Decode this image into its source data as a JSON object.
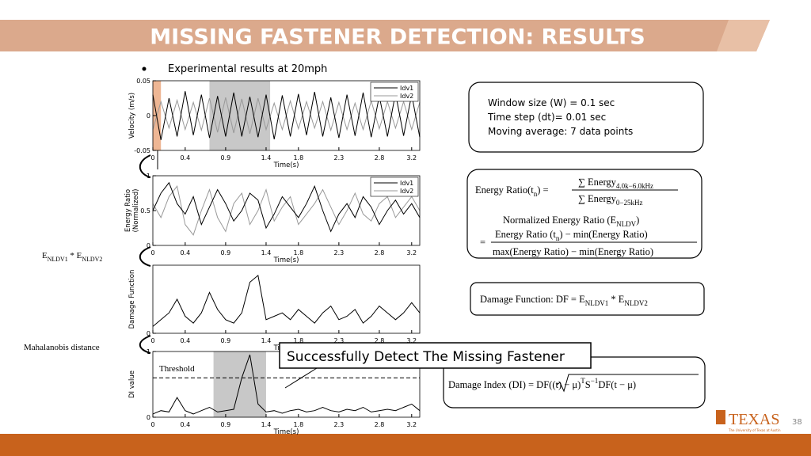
{
  "title": "MISSING FASTENER DETECTION: RESULTS",
  "bullet": "Experimental results at 20mph",
  "info_box": {
    "lines": [
      "Window size (W) = 0.1 sec",
      "Time step (dt)= 0.01 sec",
      "Moving average: 7 data points"
    ]
  },
  "energy_ratio": {
    "lines": [
      {
        "parts": [
          {
            "text": "Energy Ratio(t"
          },
          {
            "text": "n",
            "sub": true
          },
          {
            "text": ") ="
          }
        ]
      },
      {
        "parts": [
          {
            "text": "∑ Energy"
          },
          {
            "text": "4.0k−6.0kHz",
            "sub": true
          }
        ]
      },
      {
        "parts": [
          {
            "text": "∑ Energy"
          },
          {
            "text": "0−25kHz",
            "sub": true
          }
        ]
      },
      {
        "parts": [
          {
            "text": "Normalized Energy Ratio (E"
          },
          {
            "text": "NLDV",
            "sub": true
          },
          {
            "text": ")"
          }
        ]
      },
      {
        "parts": [
          {
            "text": "="
          }
        ]
      },
      {
        "parts": [
          {
            "text": "Energy Ratio (t"
          },
          {
            "text": "n",
            "sub": true
          },
          {
            "text": ") − min(Energy Ratio)"
          }
        ]
      },
      {
        "parts": [
          {
            "text": "max(Energy Ratio) − min(Energy Ratio)"
          }
        ]
      }
    ]
  },
  "damage_function": {
    "parts": [
      {
        "text": "Damage Function: DF = E"
      },
      {
        "text": "NLDV1",
        "sub": true
      },
      {
        "text": " * E"
      },
      {
        "text": "NLDV2",
        "sub": true
      }
    ]
  },
  "damage_index": {
    "parts": [
      {
        "text": "Damage Index (DI) = "
      },
      {
        "text": "DF((t) − μ)"
      },
      {
        "text": "T",
        "sup": true
      },
      {
        "text": "S"
      },
      {
        "text": "−1",
        "sup": true
      },
      {
        "text": "DF(t − μ)"
      }
    ]
  },
  "left_labels": [
    {
      "parts": [
        {
          "text": "E"
        },
        {
          "text": "NLDV1",
          "sub": true
        },
        {
          "text": " * E"
        },
        {
          "text": "NLDV2",
          "sub": true
        }
      ]
    },
    {
      "parts": [
        {
          "text": "Mahalanobis distance"
        }
      ]
    }
  ],
  "callout": "Successfully Detect The Missing Fastener",
  "logo": "TEXAS",
  "logo_sub": "The University of Texas at Austin",
  "page_number": "38",
  "chart_data": [
    {
      "type": "line",
      "ylabel": [
        "Velocity (m/s)"
      ],
      "xlabel": "Time(s)",
      "xlim": [
        0,
        3.3
      ],
      "xticks": [
        0,
        0.4,
        0.9,
        1.4,
        1.8,
        2.3,
        2.8,
        3.2
      ],
      "ylim": [
        -0.05,
        0.05
      ],
      "yticks": [
        -0.05,
        0,
        0.05
      ],
      "shades": [
        {
          "range": [
            0,
            0.1
          ],
          "color": "#e07a3c"
        },
        {
          "range": [
            0.7,
            1.45
          ],
          "color": "#9a9a9a"
        }
      ],
      "x": [
        0,
        0.1,
        0.2,
        0.3,
        0.4,
        0.5,
        0.6,
        0.7,
        0.8,
        0.9,
        1,
        1.1,
        1.2,
        1.3,
        1.4,
        1.5,
        1.6,
        1.7,
        1.8,
        1.9,
        2,
        2.1,
        2.2,
        2.3,
        2.4,
        2.5,
        2.6,
        2.7,
        2.8,
        2.9,
        3,
        3.1,
        3.2,
        3.3
      ],
      "series": [
        {
          "name": "Idv1",
          "color": "#000000",
          "values": [
            0.03,
            -0.035,
            0.025,
            -0.03,
            0.035,
            -0.028,
            0.03,
            -0.032,
            0.028,
            -0.03,
            0.033,
            -0.03,
            0.027,
            -0.031,
            0.03,
            -0.034,
            0.029,
            -0.03,
            0.031,
            -0.028,
            0.034,
            -0.03,
            0.026,
            -0.032,
            0.03,
            -0.029,
            0.033,
            -0.031,
            0.028,
            -0.03,
            0.032,
            -0.029,
            0.03,
            -0.031
          ]
        },
        {
          "name": "Idv2",
          "color": "#999999",
          "values": [
            -0.02,
            0.02,
            -0.018,
            0.022,
            -0.02,
            0.019,
            -0.021,
            0.025,
            -0.024,
            0.026,
            -0.025,
            0.024,
            -0.026,
            0.025,
            -0.02,
            0.018,
            -0.02,
            0.021,
            -0.019,
            0.02,
            -0.018,
            0.02,
            -0.021,
            0.019,
            -0.02,
            0.018,
            -0.02,
            0.021,
            -0.019,
            0.02,
            -0.018,
            0.02,
            -0.02,
            0.019
          ]
        }
      ]
    },
    {
      "type": "line",
      "ylabel": [
        "Energy Ratio",
        "(Normalized)"
      ],
      "xlabel": "Time(s)",
      "xlim": [
        0,
        3.3
      ],
      "xticks": [
        0,
        0.4,
        0.9,
        1.4,
        1.8,
        2.3,
        2.8,
        3.2
      ],
      "ylim": [
        0,
        1
      ],
      "yticks": [
        0,
        0.5,
        1
      ],
      "x": [
        0,
        0.1,
        0.2,
        0.3,
        0.4,
        0.5,
        0.6,
        0.7,
        0.8,
        0.9,
        1,
        1.1,
        1.2,
        1.3,
        1.4,
        1.5,
        1.6,
        1.7,
        1.8,
        1.9,
        2,
        2.1,
        2.2,
        2.3,
        2.4,
        2.5,
        2.6,
        2.7,
        2.8,
        2.9,
        3,
        3.1,
        3.2,
        3.3
      ],
      "series": [
        {
          "name": "Idv1",
          "color": "#000000",
          "values": [
            0.5,
            0.75,
            0.9,
            0.6,
            0.45,
            0.7,
            0.3,
            0.55,
            0.8,
            0.6,
            0.35,
            0.5,
            0.75,
            0.65,
            0.25,
            0.45,
            0.7,
            0.55,
            0.4,
            0.6,
            0.85,
            0.5,
            0.2,
            0.45,
            0.6,
            0.4,
            0.7,
            0.55,
            0.3,
            0.5,
            0.65,
            0.45,
            0.6,
            0.4
          ]
        },
        {
          "name": "Idv2",
          "color": "#999999",
          "values": [
            0.6,
            0.4,
            0.7,
            0.85,
            0.3,
            0.15,
            0.5,
            0.8,
            0.4,
            0.2,
            0.6,
            0.75,
            0.3,
            0.5,
            0.8,
            0.35,
            0.55,
            0.7,
            0.3,
            0.45,
            0.6,
            0.8,
            0.55,
            0.3,
            0.5,
            0.75,
            0.45,
            0.35,
            0.6,
            0.7,
            0.4,
            0.55,
            0.7,
            0.5
          ]
        }
      ]
    },
    {
      "type": "line",
      "ylabel": [
        "Damage Function"
      ],
      "xlabel": "Time(s)",
      "xlim": [
        0,
        3.3
      ],
      "xticks": [
        0,
        0.4,
        0.9,
        1.4,
        1.8,
        2.3,
        2.8,
        3.2
      ],
      "ylim": [
        0,
        1
      ],
      "yticks": [
        0
      ],
      "x": [
        0,
        0.1,
        0.2,
        0.3,
        0.4,
        0.5,
        0.6,
        0.7,
        0.8,
        0.9,
        1,
        1.1,
        1.2,
        1.3,
        1.4,
        1.5,
        1.6,
        1.7,
        1.8,
        1.9,
        2,
        2.1,
        2.2,
        2.3,
        2.4,
        2.5,
        2.6,
        2.7,
        2.8,
        2.9,
        3,
        3.1,
        3.2,
        3.3
      ],
      "series": [
        {
          "color": "#000000",
          "values": [
            0.1,
            0.2,
            0.3,
            0.5,
            0.25,
            0.15,
            0.3,
            0.6,
            0.35,
            0.2,
            0.15,
            0.3,
            0.75,
            0.85,
            0.2,
            0.25,
            0.3,
            0.2,
            0.35,
            0.25,
            0.15,
            0.3,
            0.4,
            0.2,
            0.25,
            0.35,
            0.15,
            0.25,
            0.4,
            0.3,
            0.2,
            0.3,
            0.45,
            0.3
          ]
        }
      ]
    },
    {
      "type": "line",
      "ylabel": [
        "DI value"
      ],
      "xlabel": "Time(s)",
      "xlim": [
        0,
        3.3
      ],
      "xticks": [
        0,
        0.4,
        0.9,
        1.4,
        1.8,
        2.3,
        2.8,
        3.2
      ],
      "ylim": [
        0,
        1
      ],
      "yticks": [
        0,
        1
      ],
      "shades": [
        {
          "range": [
            0.75,
            1.4
          ],
          "color": "#9a9a9a"
        }
      ],
      "threshold": {
        "value": 0.6,
        "label": "Threshold"
      },
      "x": [
        0,
        0.1,
        0.2,
        0.3,
        0.4,
        0.5,
        0.6,
        0.7,
        0.8,
        0.9,
        1,
        1.1,
        1.2,
        1.3,
        1.4,
        1.5,
        1.6,
        1.7,
        1.8,
        1.9,
        2,
        2.1,
        2.2,
        2.3,
        2.4,
        2.5,
        2.6,
        2.7,
        2.8,
        2.9,
        3,
        3.1,
        3.2,
        3.3
      ],
      "series": [
        {
          "color": "#000000",
          "values": [
            0.05,
            0.1,
            0.08,
            0.3,
            0.1,
            0.05,
            0.1,
            0.15,
            0.08,
            0.1,
            0.12,
            0.6,
            0.95,
            0.2,
            0.08,
            0.1,
            0.06,
            0.1,
            0.12,
            0.08,
            0.1,
            0.15,
            0.1,
            0.08,
            0.12,
            0.1,
            0.15,
            0.08,
            0.1,
            0.12,
            0.1,
            0.15,
            0.2,
            0.1
          ]
        }
      ]
    }
  ]
}
